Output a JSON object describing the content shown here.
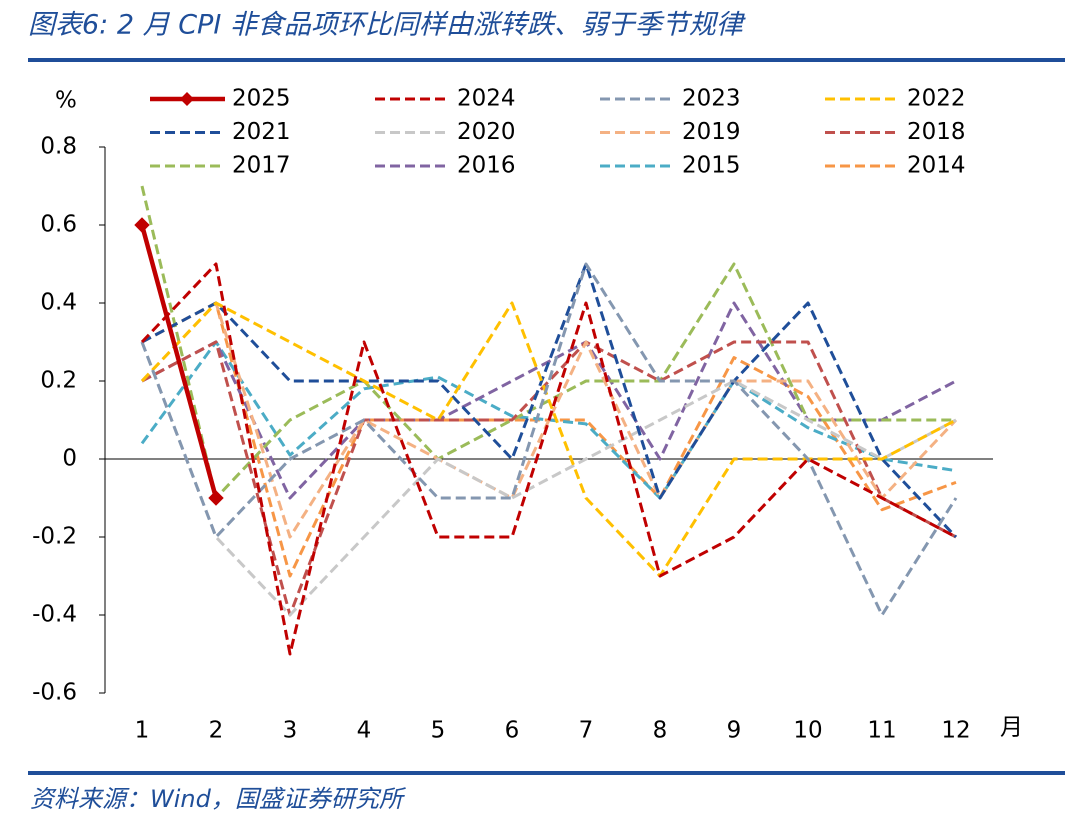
{
  "chart_data": {
    "type": "line",
    "title": "图表6: 2 月 CPI 非食品项环比同样由涨转跌、弱于季节规律",
    "source": "资料来源：Wind，国盛证券研究所",
    "y_unit": "%",
    "x_unit": "月",
    "x": [
      1,
      2,
      3,
      4,
      5,
      6,
      7,
      8,
      9,
      10,
      11,
      12
    ],
    "xlim": [
      0.5,
      12.5
    ],
    "xticks": [
      1,
      2,
      3,
      4,
      5,
      6,
      7,
      8,
      9,
      10,
      11,
      12
    ],
    "ylim": [
      -0.6,
      0.8
    ],
    "yticks": [
      0.8,
      0.6,
      0.4,
      0.2,
      0,
      -0.2,
      -0.4,
      -0.6
    ],
    "series": [
      {
        "name": "2025",
        "color": "#c00000",
        "dashed": false,
        "marker": "diamond",
        "values": [
          0.6,
          -0.1,
          null,
          null,
          null,
          null,
          null,
          null,
          null,
          null,
          null,
          null
        ]
      },
      {
        "name": "2024",
        "color": "#c00000",
        "dashed": true,
        "values": [
          0.3,
          0.5,
          -0.5,
          0.3,
          -0.2,
          -0.2,
          0.4,
          -0.3,
          -0.2,
          0,
          -0.1,
          -0.2
        ]
      },
      {
        "name": "2023",
        "color": "#8497b0",
        "dashed": true,
        "values": [
          0.3,
          -0.2,
          0,
          0.1,
          -0.1,
          -0.1,
          0.5,
          0.2,
          0.2,
          0,
          -0.4,
          -0.1
        ]
      },
      {
        "name": "2022",
        "color": "#ffc000",
        "dashed": true,
        "values": [
          0.2,
          0.4,
          0.3,
          0.2,
          0.1,
          0.4,
          -0.1,
          -0.3,
          0,
          0,
          0,
          0.1
        ]
      },
      {
        "name": "2021",
        "color": "#1f4e99",
        "dashed": true,
        "values": [
          0.3,
          0.4,
          0.2,
          0.2,
          0.2,
          0,
          0.5,
          -0.1,
          0.2,
          0.4,
          0,
          -0.2
        ]
      },
      {
        "name": "2020",
        "color": "#c8c8c8",
        "dashed": true,
        "values": [
          0.3,
          -0.2,
          -0.4,
          -0.2,
          0,
          -0.1,
          0,
          0.1,
          0.2,
          0.1,
          0,
          0.1
        ]
      },
      {
        "name": "2019",
        "color": "#f4b183",
        "dashed": true,
        "values": [
          0.2,
          0.4,
          -0.2,
          0.1,
          0,
          -0.1,
          0.3,
          -0.1,
          0.2,
          0.2,
          -0.1,
          0.1
        ]
      },
      {
        "name": "2018",
        "color": "#c0504d",
        "dashed": true,
        "values": [
          0.2,
          0.3,
          -0.4,
          0.1,
          0.1,
          0.1,
          0.3,
          0.2,
          0.3,
          0.3,
          -0.1,
          -0.2
        ]
      },
      {
        "name": "2017",
        "color": "#9bbb59",
        "dashed": true,
        "values": [
          0.7,
          -0.1,
          0.1,
          0.2,
          0,
          0.1,
          0.2,
          0.2,
          0.5,
          0.1,
          0.1,
          0.1
        ]
      },
      {
        "name": "2016",
        "color": "#8064a2",
        "dashed": true,
        "values": [
          0.2,
          0.3,
          -0.1,
          0.1,
          0.1,
          0.2,
          0.3,
          0,
          0.4,
          0.1,
          0.1,
          0.2
        ]
      },
      {
        "name": "2015",
        "color": "#4bacc6",
        "dashed": true,
        "values": [
          0.04,
          0.3,
          0.01,
          0.18,
          0.21,
          0.11,
          0.09,
          -0.1,
          0.2,
          0.08,
          0,
          -0.03
        ]
      },
      {
        "name": "2014",
        "color": "#f79646",
        "dashed": true,
        "values": [
          0.3,
          0.4,
          -0.3,
          0.1,
          0.1,
          0.1,
          0.1,
          -0.1,
          0.26,
          0.16,
          -0.13,
          -0.06
        ]
      }
    ]
  }
}
